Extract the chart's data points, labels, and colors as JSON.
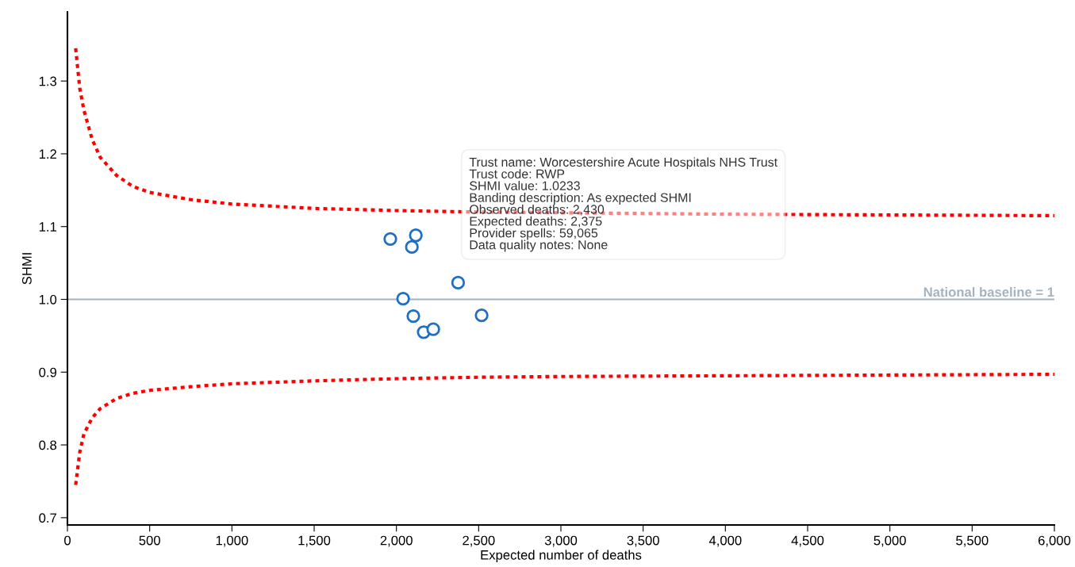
{
  "chart_data": {
    "type": "scatter",
    "xlabel": "Expected number of deaths",
    "ylabel": "SHMI",
    "xlim": [
      0,
      6000
    ],
    "ylim": [
      0.69,
      1.395
    ],
    "xticks": [
      0,
      500,
      {
        "value": 1000,
        "label": "1,000"
      },
      {
        "value": 1500,
        "label": "1,500"
      },
      {
        "value": 2000,
        "label": "2,000"
      },
      {
        "value": 2500,
        "label": "2,500"
      },
      {
        "value": 3000,
        "label": "3,000"
      },
      {
        "value": 3500,
        "label": "3,500"
      },
      {
        "value": 4000,
        "label": "4,000"
      },
      {
        "value": 4500,
        "label": "4,500"
      },
      {
        "value": 5000,
        "label": "5,000"
      },
      {
        "value": 5500,
        "label": "5,500"
      },
      {
        "value": 6000,
        "label": "6,000"
      }
    ],
    "yticks": [
      0.7,
      0.8,
      0.9,
      {
        "value": 1.0,
        "label": "1.0"
      },
      1.1,
      1.2,
      1.3
    ],
    "grid": false,
    "legend": false,
    "series": [
      {
        "type": "line",
        "color": "#ff0000",
        "line_style": "dotted",
        "marker": "none",
        "x": [
          50,
          75,
          100,
          150,
          200,
          300,
          400,
          500,
          750,
          1000,
          1500,
          2000,
          2500,
          3000,
          4000,
          5000,
          6000
        ],
        "values": [
          1.345,
          1.29,
          1.26,
          1.22,
          1.195,
          1.17,
          1.155,
          1.147,
          1.137,
          1.131,
          1.125,
          1.122,
          1.12,
          1.119,
          1.117,
          1.116,
          1.115
        ]
      },
      {
        "type": "line",
        "color": "#ff0000",
        "line_style": "dotted",
        "marker": "none",
        "x": [
          50,
          75,
          100,
          150,
          200,
          300,
          400,
          500,
          750,
          1000,
          1500,
          2000,
          2500,
          3000,
          4000,
          5000,
          6000
        ],
        "values": [
          0.745,
          0.79,
          0.815,
          0.837,
          0.85,
          0.864,
          0.871,
          0.875,
          0.88,
          0.884,
          0.888,
          0.891,
          0.893,
          0.894,
          0.895,
          0.896,
          0.897
        ]
      },
      {
        "color": "#1f6fc5",
        "marker": "circle",
        "x": [
          1963,
          2118,
          2094,
          2041,
          2375,
          2103,
          2518,
          2166,
          2224
        ],
        "values": [
          1.083,
          1.088,
          1.072,
          1.001,
          1.023,
          0.977,
          0.978,
          0.955,
          0.959
        ]
      }
    ],
    "ref_lines": [
      {
        "axis": "y",
        "value": 1,
        "label": "National baseline = 1",
        "color": "#a3b3c2",
        "line_style": "solid"
      }
    ],
    "annotations": [
      {
        "text": "Trust name: Worcestershire Acute Hospitals NHS Trust\nTrust code: RWP\nSHMI value: 1.0233\nBanding description: As expected SHMI\nObserved deaths: 2,430\nExpected deaths: 2,375\nProvider spells: 59,065\nData quality notes: None",
        "x": 2375,
        "y": 1.023
      }
    ]
  }
}
